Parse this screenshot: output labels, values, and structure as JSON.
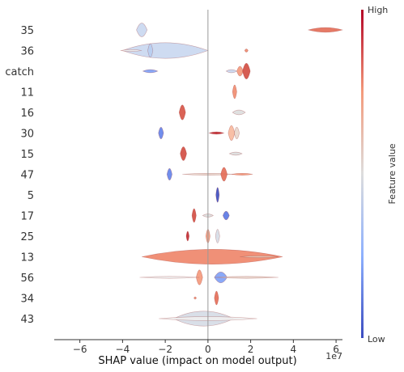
{
  "chart_data": {
    "type": "violin",
    "subtype": "shap-layered-violin",
    "title": "",
    "xlabel": "SHAP value (impact on model output)",
    "x_multiplier_label": "1e7",
    "x_ticks": [
      -6,
      -4,
      -2,
      0,
      2,
      4,
      6
    ],
    "x_tick_labels": [
      "−6",
      "−4",
      "−2",
      "0",
      "2",
      "4",
      "6"
    ],
    "xlim": [
      -7.2,
      6.3
    ],
    "zero_line": true,
    "colorbar": {
      "label": "Feature value",
      "high_label": "High",
      "low_label": "Low",
      "low_color": "#3b4cc0",
      "mid_color": "#dddddd",
      "high_color": "#b40426"
    },
    "features": [
      {
        "name": "35",
        "blobs": [
          {
            "x": -3.1,
            "w": 0.25,
            "h": 0.35,
            "color": "#c9d7f0"
          },
          {
            "x": 5.5,
            "w": 0.8,
            "h": 0.12,
            "color": "#e36b55"
          }
        ]
      },
      {
        "name": "36",
        "blobs": [
          {
            "x": -2.0,
            "w": 2.0,
            "h": 0.4,
            "color": "#c9d7f0"
          },
          {
            "x": -3.6,
            "w": 0.5,
            "h": 0.05,
            "color": "#eeeeee"
          },
          {
            "x": -2.7,
            "w": 0.12,
            "h": 0.35,
            "color": "#b8cdf0"
          },
          {
            "x": 1.8,
            "w": 0.08,
            "h": 0.08,
            "color": "#f08b6e"
          }
        ]
      },
      {
        "name": "catch",
        "blobs": [
          {
            "x": -2.7,
            "w": 0.35,
            "h": 0.08,
            "color": "#7da0f7"
          },
          {
            "x": 1.1,
            "w": 0.25,
            "h": 0.08,
            "color": "#c9d7f0"
          },
          {
            "x": 1.5,
            "w": 0.15,
            "h": 0.25,
            "color": "#f4987a"
          },
          {
            "x": 1.8,
            "w": 0.18,
            "h": 0.4,
            "color": "#d24b40"
          }
        ]
      },
      {
        "name": "11",
        "blobs": [
          {
            "x": 1.25,
            "w": 0.1,
            "h": 0.35,
            "color": "#f08b6e"
          }
        ]
      },
      {
        "name": "16",
        "blobs": [
          {
            "x": -1.2,
            "w": 0.15,
            "h": 0.38,
            "color": "#d65244"
          },
          {
            "x": 1.45,
            "w": 0.3,
            "h": 0.12,
            "color": "#dcdddd"
          }
        ]
      },
      {
        "name": "30",
        "blobs": [
          {
            "x": -2.2,
            "w": 0.12,
            "h": 0.3,
            "color": "#6282ea"
          },
          {
            "x": 0.4,
            "w": 0.35,
            "h": 0.06,
            "color": "#c0282f"
          },
          {
            "x": 1.1,
            "w": 0.15,
            "h": 0.38,
            "color": "#f7b89c"
          },
          {
            "x": 1.35,
            "w": 0.12,
            "h": 0.3,
            "color": "#e8d6cc"
          }
        ]
      },
      {
        "name": "15",
        "blobs": [
          {
            "x": -1.15,
            "w": 0.15,
            "h": 0.35,
            "color": "#d24b40"
          },
          {
            "x": 1.3,
            "w": 0.3,
            "h": 0.08,
            "color": "#dcdddd"
          }
        ]
      },
      {
        "name": "47",
        "blobs": [
          {
            "x": -1.8,
            "w": 0.12,
            "h": 0.3,
            "color": "#6282ea"
          },
          {
            "x": 0.0,
            "w": 1.2,
            "h": 0.05,
            "color": "#e8d6cc"
          },
          {
            "x": 0.75,
            "w": 0.15,
            "h": 0.35,
            "color": "#e36b55"
          },
          {
            "x": 1.6,
            "w": 0.5,
            "h": 0.05,
            "color": "#f4987a"
          }
        ]
      },
      {
        "name": "5",
        "blobs": [
          {
            "x": 0.45,
            "w": 0.08,
            "h": 0.38,
            "color": "#3b4cc0"
          }
        ]
      },
      {
        "name": "17",
        "blobs": [
          {
            "x": -0.65,
            "w": 0.1,
            "h": 0.35,
            "color": "#d24b40"
          },
          {
            "x": 0.0,
            "w": 0.25,
            "h": 0.08,
            "color": "#dcdddd"
          },
          {
            "x": 0.85,
            "w": 0.15,
            "h": 0.22,
            "color": "#5977e3"
          }
        ]
      },
      {
        "name": "25",
        "blobs": [
          {
            "x": -0.95,
            "w": 0.07,
            "h": 0.25,
            "color": "#c0282f"
          },
          {
            "x": 0.0,
            "w": 0.1,
            "h": 0.35,
            "color": "#f49a7b"
          },
          {
            "x": 0.45,
            "w": 0.1,
            "h": 0.35,
            "color": "#d5dbe5"
          }
        ]
      },
      {
        "name": "13",
        "blobs": [
          {
            "x": 0.2,
            "w": 3.3,
            "h": 0.38,
            "color": "#ee8468"
          },
          {
            "x": 2.4,
            "w": 0.9,
            "h": 0.05,
            "color": "#e4c6b5"
          }
        ]
      },
      {
        "name": "56",
        "blobs": [
          {
            "x": -0.4,
            "w": 0.15,
            "h": 0.38,
            "color": "#f4987a"
          },
          {
            "x": 0.6,
            "w": 0.3,
            "h": 0.28,
            "color": "#7da0f7"
          },
          {
            "x": 1.8,
            "w": 1.5,
            "h": 0.05,
            "color": "#e8d6cc"
          },
          {
            "x": -1.8,
            "w": 1.4,
            "h": 0.05,
            "color": "#eeeeee"
          }
        ]
      },
      {
        "name": "34",
        "blobs": [
          {
            "x": -0.6,
            "w": 0.06,
            "h": 0.06,
            "color": "#f08b6e"
          },
          {
            "x": 0.4,
            "w": 0.1,
            "h": 0.35,
            "color": "#e36b55"
          }
        ]
      },
      {
        "name": "43",
        "blobs": [
          {
            "x": -0.2,
            "w": 1.4,
            "h": 0.38,
            "color": "#d5dbe5"
          },
          {
            "x": 0.0,
            "w": 2.3,
            "h": 0.1,
            "color": "#eeeeee"
          }
        ]
      }
    ]
  }
}
